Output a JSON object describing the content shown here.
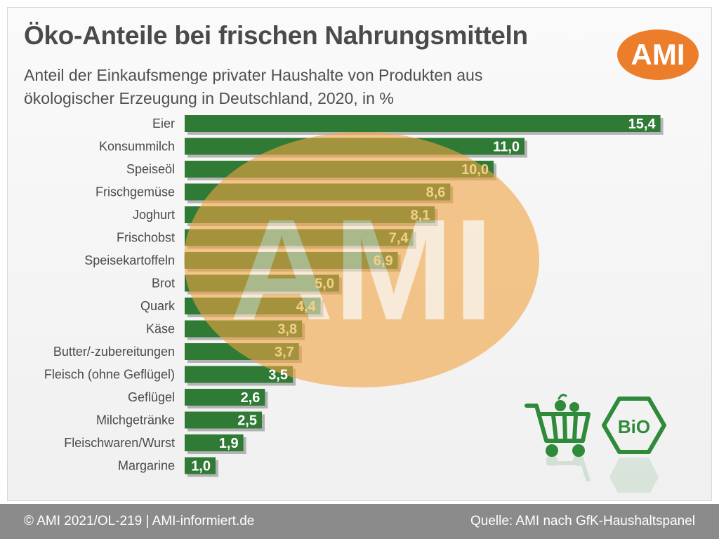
{
  "header": {
    "title": "Öko-Anteile bei frischen Nahrungsmitteln",
    "subtitle_line1": "Anteil der Einkaufsmenge privater Haushalte von Produkten aus",
    "subtitle_line2": "ökologischer Erzeugung in Deutschland, 2020, in %",
    "logo_text": "AMI"
  },
  "watermark": {
    "text": "AMI"
  },
  "icons": {
    "cart": "shopping-cart-icon",
    "bio": "bio-seal-icon",
    "bio_text": "BiO"
  },
  "footer": {
    "left": "© AMI 2021/OL-219 | AMI-informiert.de",
    "right": "Quelle: AMI nach GfK-Haushaltspanel"
  },
  "colors": {
    "bar": "#2f7a35",
    "bar_shadow": "#7d7d7d",
    "logo_orange": "#ec7d2a",
    "watermark_orange": "#f2a441",
    "label_on_watermark": "#f4cf8c",
    "footer_bg": "#8b8b8b"
  },
  "chart_data": {
    "type": "bar",
    "orientation": "horizontal",
    "title": "Öko-Anteile bei frischen Nahrungsmitteln",
    "xlabel": "",
    "ylabel": "",
    "xlim": [
      0,
      16
    ],
    "grid": false,
    "legend": "none",
    "categories": [
      "Eier",
      "Konsummilch",
      "Speiseöl",
      "Frischgemüse",
      "Joghurt",
      "Frischobst",
      "Speisekartoffeln",
      "Brot",
      "Quark",
      "Käse",
      "Butter/-zubereitungen",
      "Fleisch (ohne Geflügel)",
      "Geflügel",
      "Milchgetränke",
      "Fleischwaren/Wurst",
      "Margarine"
    ],
    "values": [
      15.4,
      11.0,
      10.0,
      8.6,
      8.1,
      7.4,
      6.9,
      5.0,
      4.4,
      3.8,
      3.7,
      3.5,
      2.6,
      2.5,
      1.9,
      1.0
    ],
    "value_labels": [
      "15,4",
      "11,0",
      "10,0",
      "8,6",
      "8,1",
      "7,4",
      "6,9",
      "5,0",
      "4,4",
      "3,8",
      "3,7",
      "3,5",
      "2,6",
      "2,5",
      "1,9",
      "1,0"
    ]
  }
}
